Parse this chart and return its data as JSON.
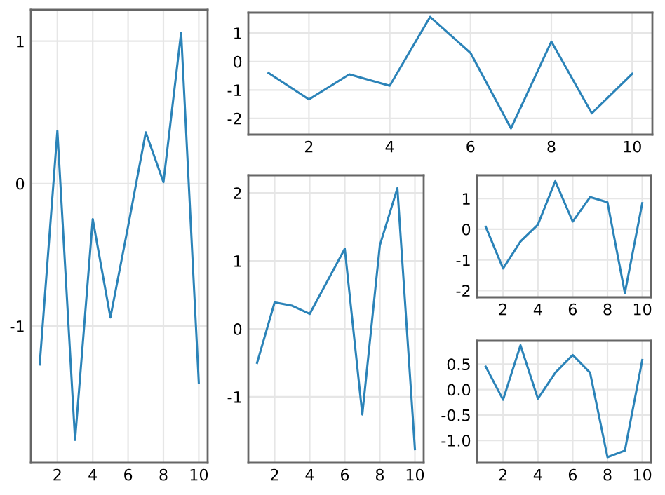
{
  "chart_data": [
    {
      "type": "line",
      "x": [
        1,
        2,
        3,
        4,
        5,
        6,
        7,
        8,
        9,
        10
      ],
      "series": [
        {
          "color": "#2b83b8",
          "values": [
            -1.27,
            0.37,
            -1.8,
            -0.25,
            -0.94,
            -0.3,
            0.36,
            0.01,
            1.06,
            -1.4
          ]
        }
      ],
      "xlim": [
        0.5,
        10.5
      ],
      "ylim": [
        -1.96,
        1.22
      ],
      "xticks": [
        2,
        4,
        6,
        8,
        10
      ],
      "yticks": [
        -1,
        0,
        1
      ],
      "grid": true
    },
    {
      "type": "line",
      "x": [
        1,
        2,
        3,
        4,
        5,
        6,
        7,
        8,
        9,
        10
      ],
      "series": [
        {
          "color": "#2b83b8",
          "values": [
            -0.4,
            -1.33,
            -0.45,
            -0.85,
            1.57,
            0.3,
            -2.35,
            0.7,
            -1.82,
            -0.43
          ]
        }
      ],
      "xlim": [
        0.5,
        10.5
      ],
      "ylim": [
        -2.57,
        1.72
      ],
      "xticks": [
        2,
        4,
        6,
        8,
        10
      ],
      "yticks": [
        -2,
        -1,
        0,
        1
      ],
      "grid": true
    },
    {
      "type": "line",
      "x": [
        1,
        2,
        3,
        4,
        5,
        6,
        7,
        8,
        9,
        10
      ],
      "series": [
        {
          "color": "#2b83b8",
          "values": [
            -0.5,
            0.39,
            0.34,
            0.22,
            0.7,
            1.18,
            -1.26,
            1.23,
            2.07,
            -1.77
          ]
        }
      ],
      "xlim": [
        0.5,
        10.5
      ],
      "ylim": [
        -1.97,
        2.26
      ],
      "xticks": [
        2,
        4,
        6,
        8,
        10
      ],
      "yticks": [
        -1,
        0,
        1,
        2
      ],
      "grid": true
    },
    {
      "type": "line",
      "x": [
        1,
        2,
        3,
        4,
        5,
        6,
        7,
        8,
        9,
        10
      ],
      "series": [
        {
          "color": "#2b83b8",
          "values": [
            0.08,
            -1.28,
            -0.4,
            0.15,
            1.57,
            0.25,
            1.05,
            0.88,
            -2.08,
            0.85
          ]
        }
      ],
      "xlim": [
        0.5,
        10.5
      ],
      "ylim": [
        -2.22,
        1.76
      ],
      "xticks": [
        2,
        4,
        6,
        8,
        10
      ],
      "yticks": [
        -2,
        -1,
        0,
        1
      ],
      "grid": true
    },
    {
      "type": "line",
      "x": [
        1,
        2,
        3,
        4,
        5,
        6,
        7,
        8,
        9,
        10
      ],
      "series": [
        {
          "color": "#2b83b8",
          "values": [
            0.45,
            -0.2,
            0.87,
            -0.18,
            0.33,
            0.68,
            0.33,
            -1.33,
            -1.2,
            0.58
          ]
        }
      ],
      "xlim": [
        0.5,
        10.5
      ],
      "ylim": [
        -1.44,
        0.96
      ],
      "xticks": [
        2,
        4,
        6,
        8,
        10
      ],
      "yticks": [
        {
          "value": -1.0,
          "label": "-1.0"
        },
        {
          "value": -0.5,
          "label": "-0.5"
        },
        {
          "value": 0.0,
          "label": "0.0"
        },
        {
          "value": 0.5,
          "label": "0.5"
        }
      ],
      "grid": true
    }
  ]
}
